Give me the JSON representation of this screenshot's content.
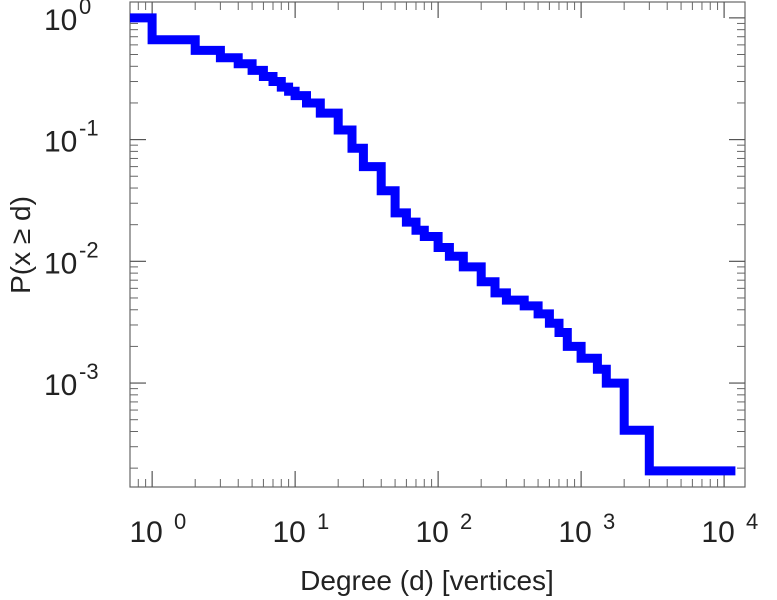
{
  "chart_data": {
    "type": "line",
    "step": true,
    "xscale": "log",
    "yscale": "log",
    "xlabel": "Degree (d) [vertices]",
    "ylabel": "P(x ≥ d)",
    "xlim": [
      0.7,
      14000
    ],
    "ylim": [
      0.00014,
      1.35
    ],
    "grid": false,
    "color": "#0000ff",
    "x_ticks": [
      {
        "value": 1,
        "base": "10",
        "exp": "0"
      },
      {
        "value": 10,
        "base": "10",
        "exp": "1"
      },
      {
        "value": 100,
        "base": "10",
        "exp": "2"
      },
      {
        "value": 1000,
        "base": "10",
        "exp": "3"
      },
      {
        "value": 10000,
        "base": "10",
        "exp": "4"
      }
    ],
    "y_ticks": [
      {
        "value": 1,
        "base": "10",
        "exp": "0"
      },
      {
        "value": 0.1,
        "base": "10",
        "exp": "-1"
      },
      {
        "value": 0.01,
        "base": "10",
        "exp": "-2"
      },
      {
        "value": 0.001,
        "base": "10",
        "exp": "-3"
      }
    ],
    "series": [
      {
        "x": [
          0.7,
          1,
          2,
          3,
          4,
          5,
          6,
          7,
          8,
          9,
          10,
          12,
          15,
          20,
          25,
          30,
          40,
          50,
          60,
          70,
          80,
          100,
          120,
          150,
          200,
          250,
          300,
          400,
          500,
          600,
          700,
          800,
          1000,
          1300,
          1500,
          2000,
          3000,
          12000
        ],
        "y": [
          1.0,
          0.66,
          0.54,
          0.47,
          0.42,
          0.37,
          0.33,
          0.3,
          0.27,
          0.25,
          0.23,
          0.2,
          0.165,
          0.12,
          0.085,
          0.06,
          0.038,
          0.025,
          0.021,
          0.018,
          0.016,
          0.013,
          0.011,
          0.009,
          0.0068,
          0.0055,
          0.0048,
          0.0043,
          0.0037,
          0.0031,
          0.0026,
          0.002,
          0.0016,
          0.0013,
          0.001,
          0.00041,
          0.00019,
          0.00019
        ]
      }
    ]
  }
}
